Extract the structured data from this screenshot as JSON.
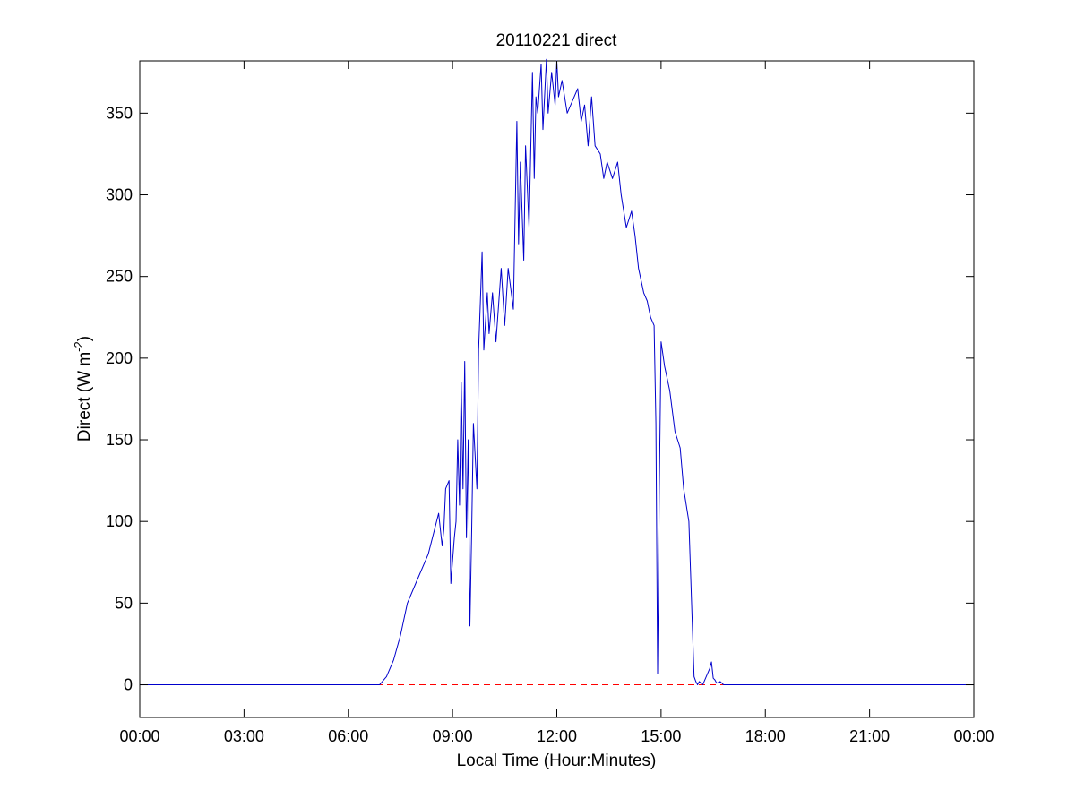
{
  "chart_data": {
    "type": "line",
    "title": "20110221 direct",
    "xlabel": "Local Time (Hour:Minutes)",
    "ylabel_main": "Direct (W m",
    "ylabel_sup": "-2",
    "ylabel_close": ")",
    "xlim": [
      0,
      24
    ],
    "ylim": [
      -20,
      382
    ],
    "xticks": [
      {
        "value": 0,
        "label": "00:00"
      },
      {
        "value": 3,
        "label": "03:00"
      },
      {
        "value": 6,
        "label": "06:00"
      },
      {
        "value": 9,
        "label": "09:00"
      },
      {
        "value": 12,
        "label": "12:00"
      },
      {
        "value": 15,
        "label": "15:00"
      },
      {
        "value": 18,
        "label": "18:00"
      },
      {
        "value": 21,
        "label": "21:00"
      },
      {
        "value": 24,
        "label": "00:00"
      }
    ],
    "yticks": [
      {
        "value": 0,
        "label": "0"
      },
      {
        "value": 50,
        "label": "50"
      },
      {
        "value": 100,
        "label": "100"
      },
      {
        "value": 150,
        "label": "150"
      },
      {
        "value": 200,
        "label": "200"
      },
      {
        "value": 250,
        "label": "250"
      },
      {
        "value": 300,
        "label": "300"
      },
      {
        "value": 350,
        "label": "350"
      }
    ],
    "grid": false,
    "series": [
      {
        "color": "#0000cc",
        "style": "solid",
        "x": [
          0,
          1,
          2,
          3,
          4,
          5,
          6,
          6.9,
          7.1,
          7.3,
          7.5,
          7.7,
          8.0,
          8.3,
          8.6,
          8.7,
          8.75,
          8.8,
          8.9,
          8.95,
          9.05,
          9.1,
          9.15,
          9.2,
          9.25,
          9.3,
          9.35,
          9.4,
          9.45,
          9.5,
          9.55,
          9.6,
          9.7,
          9.75,
          9.8,
          9.85,
          9.9,
          10.0,
          10.05,
          10.15,
          10.25,
          10.4,
          10.5,
          10.6,
          10.75,
          10.85,
          10.9,
          10.95,
          11.05,
          11.1,
          11.2,
          11.3,
          11.35,
          11.4,
          11.45,
          11.55,
          11.6,
          11.7,
          11.75,
          11.85,
          11.95,
          12.0,
          12.05,
          12.15,
          12.3,
          12.5,
          12.6,
          12.7,
          12.8,
          12.9,
          13.0,
          13.1,
          13.25,
          13.35,
          13.45,
          13.6,
          13.75,
          13.85,
          14.0,
          14.15,
          14.25,
          14.35,
          14.5,
          14.6,
          14.7,
          14.8,
          14.85,
          14.9,
          14.95,
          15.0,
          15.1,
          15.25,
          15.4,
          15.55,
          15.65,
          15.8,
          15.95,
          16.0,
          16.05,
          16.1,
          16.2,
          16.4,
          16.45,
          16.5,
          16.55,
          16.6,
          16.7,
          16.8,
          17.0,
          18,
          19,
          20,
          21,
          22,
          23,
          24
        ],
        "y": [
          0,
          0,
          0,
          0,
          0,
          0,
          0,
          0,
          5,
          15,
          30,
          50,
          65,
          80,
          105,
          85,
          95,
          120,
          125,
          62,
          90,
          100,
          150,
          110,
          185,
          120,
          198,
          90,
          150,
          36,
          95,
          160,
          120,
          205,
          235,
          265,
          205,
          240,
          215,
          240,
          210,
          255,
          220,
          255,
          230,
          345,
          270,
          320,
          260,
          330,
          280,
          375,
          310,
          360,
          350,
          380,
          340,
          383,
          350,
          375,
          355,
          382,
          360,
          370,
          350,
          360,
          365,
          345,
          355,
          330,
          360,
          330,
          325,
          310,
          320,
          310,
          320,
          300,
          280,
          290,
          275,
          255,
          240,
          235,
          225,
          220,
          160,
          7,
          120,
          210,
          195,
          180,
          155,
          145,
          120,
          100,
          5,
          2,
          0,
          2,
          0,
          10,
          14,
          4,
          3,
          1,
          2,
          0,
          0,
          0,
          0,
          0,
          0,
          0,
          0,
          0
        ]
      },
      {
        "color": "#ff0000",
        "style": "dashed",
        "x": [
          0,
          24
        ],
        "y": [
          0,
          0
        ]
      }
    ]
  }
}
